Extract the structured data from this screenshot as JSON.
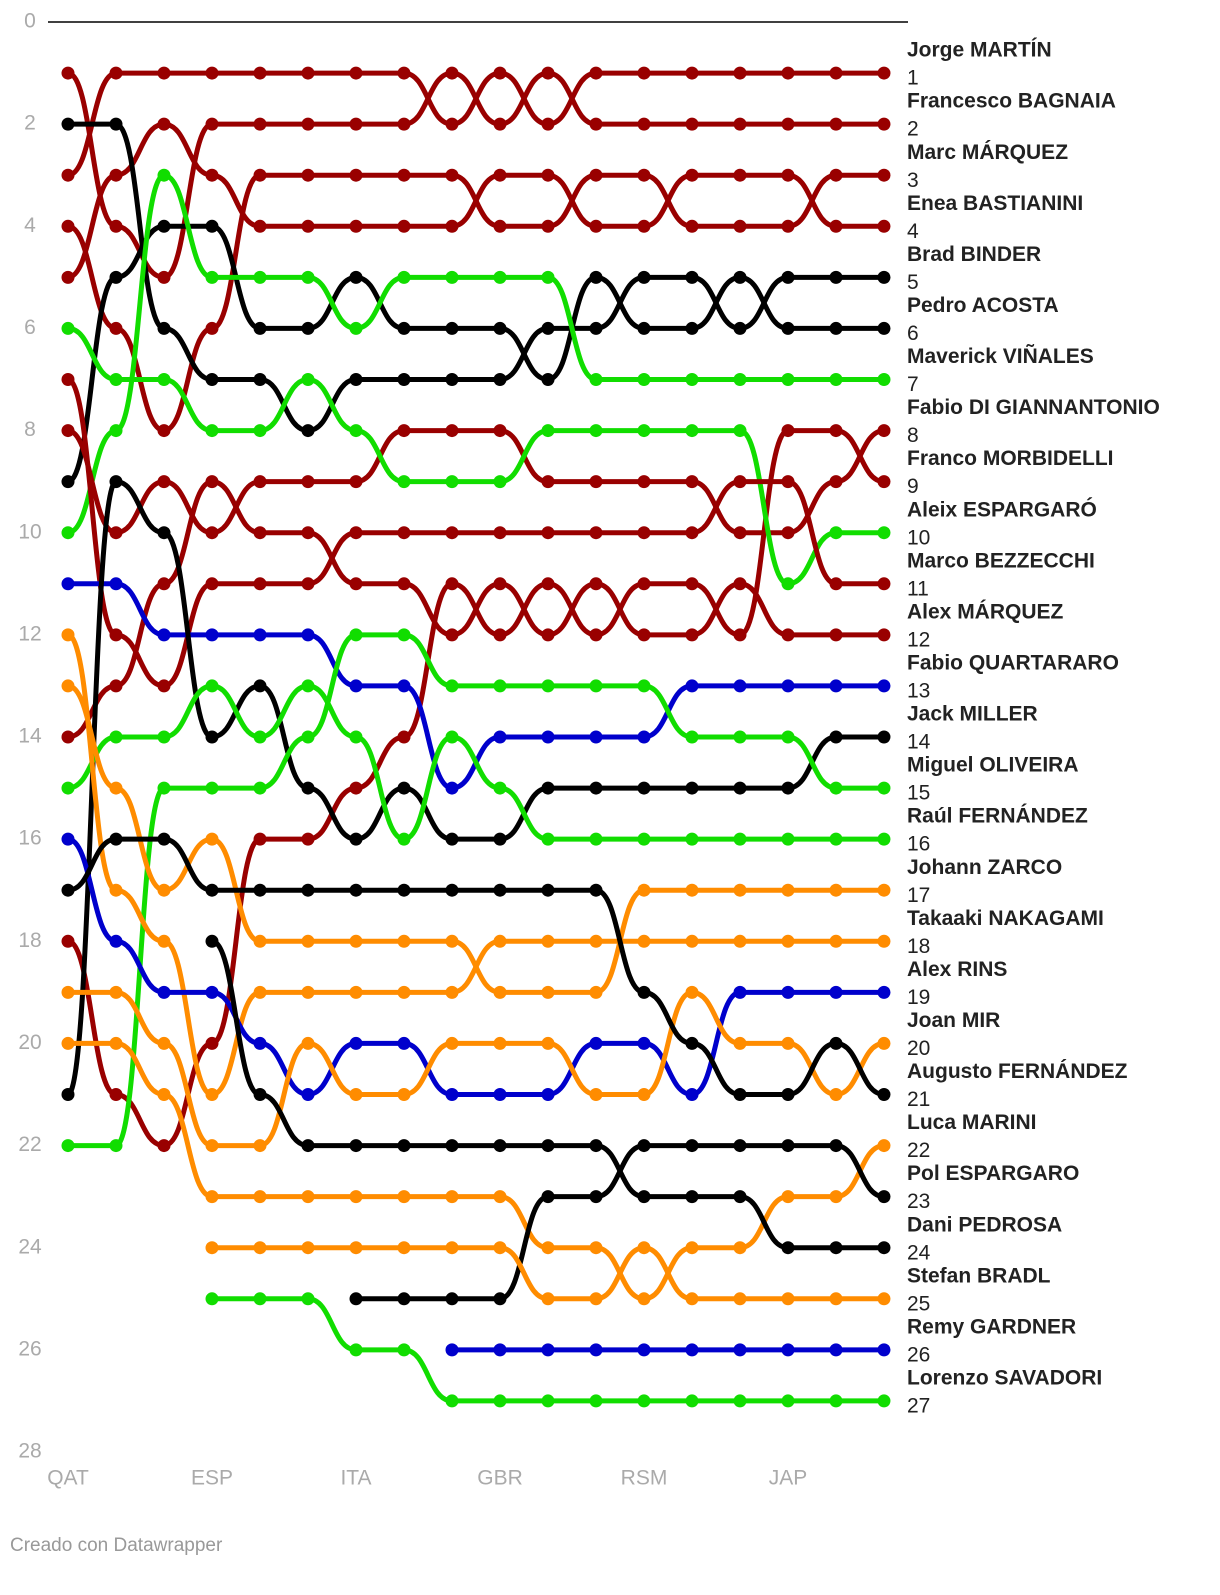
{
  "chart_data": {
    "type": "bump",
    "categories": [
      "QAT",
      null,
      null,
      "ESP",
      null,
      null,
      "ITA",
      null,
      null,
      "GBR",
      null,
      null,
      "RSM",
      null,
      null,
      "JAP",
      null,
      null
    ],
    "ylim": [
      0,
      28
    ],
    "yticks": [
      0,
      2,
      4,
      6,
      8,
      10,
      12,
      14,
      16,
      18,
      20,
      22,
      24,
      26,
      28
    ],
    "y_reversed": true,
    "source": "Creado con Datawrapper",
    "series": [
      {
        "name": "Jorge MARTÍN",
        "color": "#990000",
        "values": [
          3,
          1,
          1,
          1,
          1,
          1,
          1,
          1,
          2,
          1,
          2,
          1,
          1,
          1,
          1,
          1,
          1,
          1
        ]
      },
      {
        "name": "Francesco BAGNAIA",
        "color": "#990000",
        "values": [
          1,
          4,
          5,
          2,
          2,
          2,
          2,
          2,
          1,
          2,
          1,
          2,
          2,
          2,
          2,
          2,
          2,
          2
        ]
      },
      {
        "name": "Marc MÁRQUEZ",
        "color": "#990000",
        "values": [
          4,
          6,
          8,
          6,
          3,
          3,
          3,
          3,
          3,
          4,
          4,
          3,
          3,
          4,
          4,
          4,
          3,
          3
        ]
      },
      {
        "name": "Enea BASTIANINI",
        "color": "#990000",
        "values": [
          5,
          3,
          2,
          3,
          4,
          4,
          4,
          4,
          4,
          3,
          3,
          4,
          4,
          3,
          3,
          3,
          4,
          4
        ]
      },
      {
        "name": "Brad BINDER",
        "color": "#000000",
        "values": [
          2,
          2,
          6,
          7,
          7,
          8,
          7,
          7,
          7,
          7,
          6,
          6,
          5,
          5,
          6,
          5,
          5,
          5
        ]
      },
      {
        "name": "Pedro ACOSTA",
        "color": "#000000",
        "values": [
          9,
          5,
          4,
          4,
          6,
          6,
          5,
          6,
          6,
          6,
          7,
          5,
          6,
          6,
          5,
          6,
          6,
          6
        ]
      },
      {
        "name": "Maverick VIÑALES",
        "color": "#11dd00",
        "values": [
          10,
          8,
          3,
          5,
          5,
          5,
          6,
          5,
          5,
          5,
          5,
          7,
          7,
          7,
          7,
          7,
          7,
          7
        ]
      },
      {
        "name": "Fabio DI GIANNANTONIO",
        "color": "#990000",
        "values": [
          8,
          10,
          9,
          10,
          9,
          9,
          9,
          8,
          8,
          8,
          9,
          9,
          9,
          9,
          10,
          10,
          9,
          8
        ]
      },
      {
        "name": "Franco MORBIDELLI",
        "color": "#990000",
        "values": [
          18,
          21,
          22,
          20,
          16,
          16,
          15,
          14,
          11,
          12,
          11,
          12,
          11,
          11,
          12,
          8,
          8,
          9
        ]
      },
      {
        "name": "Aleix ESPARGARÓ",
        "color": "#11dd00",
        "values": [
          6,
          7,
          7,
          8,
          8,
          7,
          8,
          9,
          9,
          9,
          8,
          8,
          8,
          8,
          8,
          11,
          10,
          10
        ]
      },
      {
        "name": "Marco BEZZECCHI",
        "color": "#990000",
        "values": [
          7,
          12,
          13,
          11,
          11,
          11,
          10,
          10,
          10,
          10,
          10,
          10,
          10,
          10,
          9,
          9,
          11,
          11
        ]
      },
      {
        "name": "Alex MÁRQUEZ",
        "color": "#990000",
        "values": [
          14,
          13,
          11,
          9,
          10,
          10,
          11,
          11,
          12,
          11,
          12,
          11,
          12,
          12,
          11,
          12,
          12,
          12
        ]
      },
      {
        "name": "Fabio QUARTARARO",
        "color": "#0000cc",
        "values": [
          11,
          11,
          12,
          12,
          12,
          12,
          13,
          13,
          15,
          14,
          14,
          14,
          14,
          13,
          13,
          13,
          13,
          13
        ]
      },
      {
        "name": "Jack MILLER",
        "color": "#000000",
        "values": [
          21,
          9,
          10,
          14,
          13,
          15,
          16,
          15,
          16,
          16,
          15,
          15,
          15,
          15,
          15,
          15,
          14,
          14
        ]
      },
      {
        "name": "Miguel OLIVEIRA",
        "color": "#11dd00",
        "values": [
          22,
          22,
          15,
          15,
          15,
          14,
          12,
          12,
          13,
          13,
          13,
          13,
          13,
          14,
          14,
          14,
          15,
          15
        ]
      },
      {
        "name": "Raúl FERNÁNDEZ",
        "color": "#11dd00",
        "values": [
          15,
          14,
          14,
          13,
          14,
          13,
          14,
          16,
          14,
          15,
          16,
          16,
          16,
          16,
          16,
          16,
          16,
          16
        ]
      },
      {
        "name": "Johann ZARCO",
        "color": "#ff8c00",
        "values": [
          13,
          15,
          17,
          16,
          18,
          18,
          18,
          18,
          18,
          19,
          19,
          19,
          17,
          17,
          17,
          17,
          17,
          17
        ]
      },
      {
        "name": "Takaaki NAKAGAMI",
        "color": "#ff8c00",
        "values": [
          12,
          17,
          18,
          21,
          19,
          19,
          19,
          19,
          19,
          18,
          18,
          18,
          18,
          18,
          18,
          18,
          18,
          18
        ]
      },
      {
        "name": "Alex RINS",
        "color": "#0000cc",
        "values": [
          16,
          18,
          19,
          19,
          20,
          21,
          20,
          20,
          21,
          21,
          21,
          20,
          20,
          21,
          19,
          19,
          19,
          19
        ]
      },
      {
        "name": "Joan MIR",
        "color": "#ff8c00",
        "values": [
          19,
          19,
          20,
          22,
          22,
          20,
          21,
          21,
          20,
          20,
          20,
          21,
          21,
          19,
          20,
          20,
          21,
          20
        ]
      },
      {
        "name": "Augusto FERNÁNDEZ",
        "color": "#000000",
        "values": [
          17,
          16,
          16,
          17,
          17,
          17,
          17,
          17,
          17,
          17,
          17,
          17,
          19,
          20,
          21,
          21,
          20,
          21
        ]
      },
      {
        "name": "Luca MARINI",
        "color": "#ff8c00",
        "values": [
          20,
          20,
          21,
          23,
          23,
          23,
          23,
          23,
          23,
          23,
          24,
          24,
          25,
          24,
          24,
          23,
          23,
          22
        ]
      },
      {
        "name": "Pol ESPARGARO",
        "color": "#000000",
        "values": [
          null,
          null,
          null,
          null,
          null,
          null,
          25,
          25,
          25,
          25,
          23,
          23,
          22,
          22,
          22,
          22,
          22,
          23
        ]
      },
      {
        "name": "Dani PEDROSA",
        "color": "#000000",
        "values": [
          null,
          null,
          null,
          18,
          21,
          22,
          22,
          22,
          22,
          22,
          22,
          22,
          23,
          23,
          23,
          24,
          24,
          24
        ]
      },
      {
        "name": "Stefan BRADL",
        "color": "#ff8c00",
        "values": [
          null,
          null,
          null,
          24,
          24,
          24,
          24,
          24,
          24,
          24,
          25,
          25,
          24,
          25,
          25,
          25,
          25,
          25
        ]
      },
      {
        "name": "Remy GARDNER",
        "color": "#0000cc",
        "values": [
          null,
          null,
          null,
          null,
          null,
          null,
          null,
          null,
          26,
          26,
          26,
          26,
          26,
          26,
          26,
          26,
          26,
          26
        ]
      },
      {
        "name": "Lorenzo SAVADORI",
        "color": "#11dd00",
        "values": [
          null,
          null,
          null,
          25,
          25,
          25,
          26,
          26,
          27,
          27,
          27,
          27,
          27,
          27,
          27,
          27,
          27,
          27
        ]
      }
    ]
  }
}
